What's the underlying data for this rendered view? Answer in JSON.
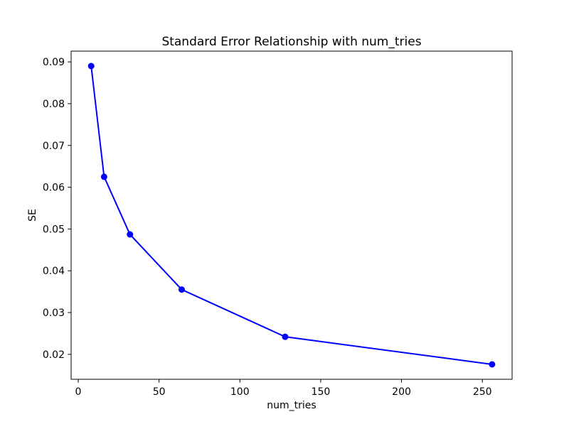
{
  "chart_data": {
    "type": "line",
    "title": "Standard Error Relationship with num_tries",
    "xlabel": "num_tries",
    "ylabel": "SE",
    "series": [
      {
        "name": "SE",
        "color": "#0000ff",
        "marker": "circle",
        "x": [
          8,
          16,
          32,
          64,
          128,
          256
        ],
        "y": [
          0.089,
          0.0625,
          0.0487,
          0.0355,
          0.0242,
          0.0176
        ]
      }
    ],
    "xlim": [
      -4.4,
      268.4
    ],
    "ylim": [
      0.01403,
      0.09257
    ],
    "xticks": [
      0,
      50,
      100,
      150,
      200,
      250
    ],
    "yticks": [
      0.02,
      0.03,
      0.04,
      0.05,
      0.06,
      0.07,
      0.08,
      0.09
    ],
    "grid": false,
    "legend_position": "none",
    "colors": {
      "line": "#0000ff",
      "spine": "#000000",
      "background": "#ffffff"
    }
  }
}
